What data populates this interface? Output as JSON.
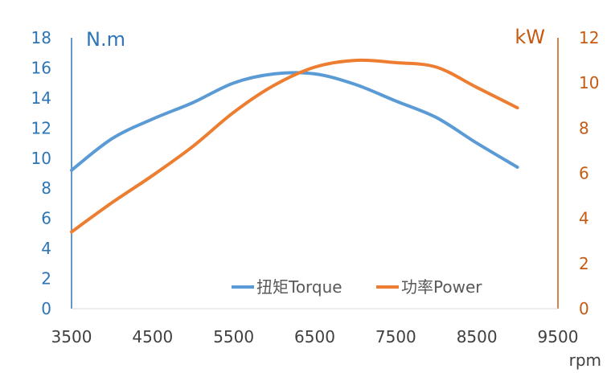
{
  "chart_data": {
    "type": "line",
    "x": [
      3500,
      4000,
      4500,
      5000,
      5500,
      6000,
      6500,
      7000,
      7500,
      8000,
      8500,
      9000
    ],
    "series": [
      {
        "name": "扭矩Torque",
        "axis": "left",
        "color": "#5B9BD5",
        "values": [
          9.2,
          11.3,
          12.6,
          13.7,
          15.0,
          15.6,
          15.6,
          14.9,
          13.8,
          12.7,
          11.0,
          9.4
        ]
      },
      {
        "name": "功率Power",
        "axis": "right",
        "color": "#ED7D31",
        "values": [
          3.4,
          4.7,
          5.9,
          7.2,
          8.7,
          9.9,
          10.7,
          11.0,
          10.9,
          10.7,
          9.8,
          8.9
        ]
      }
    ],
    "xlim": [
      3500,
      9500
    ],
    "x_ticks": [
      "3500",
      "4500",
      "5500",
      "6500",
      "7500",
      "8500",
      "9500"
    ],
    "ylim_left": [
      0,
      18
    ],
    "y_ticks_left": [
      "0",
      "2",
      "4",
      "6",
      "8",
      "10",
      "12",
      "14",
      "16",
      "18"
    ],
    "ylim_right": [
      0,
      12
    ],
    "y_ticks_right": [
      "0",
      "2",
      "4",
      "6",
      "8",
      "10",
      "12"
    ],
    "ylabel_left": "N.m",
    "ylabel_right": "kW",
    "xlabel": "rpm",
    "grid": false,
    "legend_position": "bottom-right",
    "axis_colors": {
      "left": "#2E75B6",
      "right": "#C55A11"
    }
  }
}
